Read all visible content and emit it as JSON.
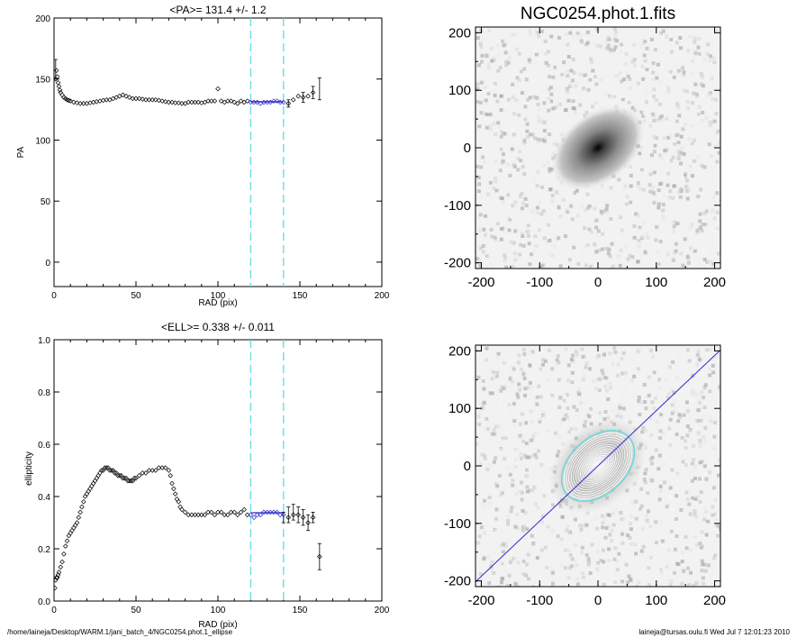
{
  "chart_data": [
    {
      "type": "scatter",
      "panel": "pa",
      "title": "<PA>= 131.4 +/-   1.2",
      "xlabel": "RAD (pix)",
      "ylabel": "PA",
      "xlim": [
        0,
        200
      ],
      "ylim": [
        -20,
        200
      ],
      "xticks": [
        0,
        50,
        100,
        150,
        200
      ],
      "yticks": [
        0,
        50,
        100,
        150,
        200
      ],
      "vlines": [
        120,
        140
      ],
      "fit": {
        "x": [
          120,
          140
        ],
        "y": 131.4
      },
      "points": [
        [
          1,
          150
        ],
        [
          1.5,
          157
        ],
        [
          2,
          152
        ],
        [
          2.5,
          147
        ],
        [
          3,
          144
        ],
        [
          3.5,
          141
        ],
        [
          4,
          139
        ],
        [
          5,
          137
        ],
        [
          6,
          135
        ],
        [
          7,
          134
        ],
        [
          8,
          133
        ],
        [
          9,
          132.5
        ],
        [
          10,
          132
        ],
        [
          12,
          131
        ],
        [
          14,
          130.5
        ],
        [
          16,
          130
        ],
        [
          18,
          130
        ],
        [
          20,
          130
        ],
        [
          22,
          130.5
        ],
        [
          24,
          131
        ],
        [
          26,
          131.5
        ],
        [
          28,
          132
        ],
        [
          30,
          132.5
        ],
        [
          32,
          133
        ],
        [
          34,
          133
        ],
        [
          36,
          134
        ],
        [
          38,
          135
        ],
        [
          40,
          136
        ],
        [
          42,
          137
        ],
        [
          44,
          136
        ],
        [
          46,
          135
        ],
        [
          48,
          134
        ],
        [
          50,
          134
        ],
        [
          52,
          134
        ],
        [
          54,
          133.5
        ],
        [
          56,
          133
        ],
        [
          58,
          133
        ],
        [
          60,
          133
        ],
        [
          62,
          133
        ],
        [
          64,
          132.5
        ],
        [
          66,
          132
        ],
        [
          68,
          131.5
        ],
        [
          70,
          131
        ],
        [
          72,
          131
        ],
        [
          74,
          130.5
        ],
        [
          76,
          130.5
        ],
        [
          78,
          130
        ],
        [
          80,
          130
        ],
        [
          82,
          131
        ],
        [
          84,
          131
        ],
        [
          86,
          131
        ],
        [
          88,
          131
        ],
        [
          90,
          130.5
        ],
        [
          92,
          131
        ],
        [
          94,
          132
        ],
        [
          96,
          132
        ],
        [
          98,
          132
        ],
        [
          100,
          142
        ],
        [
          102,
          132
        ],
        [
          104,
          131
        ],
        [
          106,
          132
        ],
        [
          108,
          132
        ],
        [
          110,
          131
        ],
        [
          112,
          130
        ],
        [
          114,
          132
        ],
        [
          116,
          131
        ],
        [
          118,
          132
        ],
        [
          120,
          131
        ],
        [
          122,
          131
        ],
        [
          124,
          131
        ],
        [
          126,
          130
        ],
        [
          128,
          131
        ],
        [
          130,
          131
        ],
        [
          132,
          131
        ],
        [
          134,
          132
        ],
        [
          136,
          132
        ],
        [
          138,
          131
        ],
        [
          140,
          131
        ],
        [
          143,
          130
        ],
        [
          146,
          133
        ],
        [
          149,
          136
        ],
        [
          152,
          135
        ],
        [
          155,
          136
        ],
        [
          158,
          139
        ]
      ],
      "errorbars": [
        [
          1,
          158,
          8
        ],
        [
          143,
          130,
          3
        ],
        [
          152,
          135,
          4
        ],
        [
          158,
          139,
          5
        ],
        [
          162,
          142,
          9
        ]
      ]
    },
    {
      "type": "scatter",
      "panel": "ell",
      "title": "<ELL>= 0.338 +/-  0.011",
      "xlabel": "RAD (pix)",
      "ylabel": "ellipticity",
      "xlim": [
        0,
        200
      ],
      "ylim": [
        0.0,
        1.0
      ],
      "xticks": [
        0,
        50,
        100,
        150,
        200
      ],
      "yticks": [
        0.0,
        0.2,
        0.4,
        0.6,
        0.8,
        1.0
      ],
      "vlines": [
        120,
        140
      ],
      "fit": {
        "x": [
          120,
          140
        ],
        "y": 0.338
      },
      "points": [
        [
          0.5,
          0.05
        ],
        [
          1,
          0.08
        ],
        [
          1.5,
          0.09
        ],
        [
          2,
          0.09
        ],
        [
          2.5,
          0.1
        ],
        [
          3,
          0.11
        ],
        [
          4,
          0.13
        ],
        [
          5,
          0.15
        ],
        [
          6,
          0.18
        ],
        [
          7,
          0.21
        ],
        [
          8,
          0.23
        ],
        [
          9,
          0.25
        ],
        [
          10,
          0.26
        ],
        [
          11,
          0.27
        ],
        [
          12,
          0.28
        ],
        [
          13,
          0.29
        ],
        [
          14,
          0.3
        ],
        [
          15,
          0.32
        ],
        [
          16,
          0.34
        ],
        [
          17,
          0.36
        ],
        [
          18,
          0.38
        ],
        [
          19,
          0.4
        ],
        [
          20,
          0.41
        ],
        [
          21,
          0.42
        ],
        [
          22,
          0.43
        ],
        [
          23,
          0.44
        ],
        [
          24,
          0.45
        ],
        [
          25,
          0.46
        ],
        [
          26,
          0.47
        ],
        [
          27,
          0.48
        ],
        [
          28,
          0.49
        ],
        [
          29,
          0.5
        ],
        [
          30,
          0.5
        ],
        [
          31,
          0.51
        ],
        [
          32,
          0.51
        ],
        [
          33,
          0.51
        ],
        [
          34,
          0.5
        ],
        [
          35,
          0.5
        ],
        [
          36,
          0.5
        ],
        [
          37,
          0.49
        ],
        [
          38,
          0.49
        ],
        [
          39,
          0.48
        ],
        [
          40,
          0.48
        ],
        [
          41,
          0.48
        ],
        [
          42,
          0.47
        ],
        [
          43,
          0.47
        ],
        [
          44,
          0.47
        ],
        [
          45,
          0.46
        ],
        [
          46,
          0.46
        ],
        [
          47,
          0.46
        ],
        [
          48,
          0.46
        ],
        [
          49,
          0.47
        ],
        [
          50,
          0.47
        ],
        [
          52,
          0.48
        ],
        [
          54,
          0.49
        ],
        [
          56,
          0.49
        ],
        [
          58,
          0.5
        ],
        [
          60,
          0.5
        ],
        [
          62,
          0.5
        ],
        [
          64,
          0.51
        ],
        [
          66,
          0.51
        ],
        [
          68,
          0.51
        ],
        [
          70,
          0.5
        ],
        [
          71,
          0.48
        ],
        [
          72,
          0.45
        ],
        [
          73,
          0.43
        ],
        [
          74,
          0.41
        ],
        [
          75,
          0.39
        ],
        [
          76,
          0.38
        ],
        [
          77,
          0.36
        ],
        [
          78,
          0.35
        ],
        [
          80,
          0.34
        ],
        [
          82,
          0.33
        ],
        [
          84,
          0.33
        ],
        [
          86,
          0.33
        ],
        [
          88,
          0.33
        ],
        [
          90,
          0.33
        ],
        [
          92,
          0.33
        ],
        [
          94,
          0.34
        ],
        [
          96,
          0.34
        ],
        [
          98,
          0.33
        ],
        [
          100,
          0.34
        ],
        [
          102,
          0.34
        ],
        [
          104,
          0.33
        ],
        [
          106,
          0.33
        ],
        [
          108,
          0.34
        ],
        [
          110,
          0.34
        ],
        [
          112,
          0.33
        ],
        [
          114,
          0.34
        ],
        [
          116,
          0.35
        ],
        [
          118,
          0.33
        ],
        [
          120,
          0.33
        ],
        [
          122,
          0.32
        ],
        [
          124,
          0.33
        ],
        [
          126,
          0.33
        ],
        [
          128,
          0.34
        ],
        [
          130,
          0.34
        ],
        [
          132,
          0.34
        ],
        [
          134,
          0.34
        ],
        [
          136,
          0.34
        ],
        [
          138,
          0.33
        ],
        [
          140,
          0.33
        ],
        [
          143,
          0.32
        ],
        [
          146,
          0.33
        ],
        [
          149,
          0.33
        ],
        [
          152,
          0.32
        ],
        [
          155,
          0.3
        ],
        [
          158,
          0.32
        ],
        [
          162,
          0.17
        ]
      ],
      "errorbars": [
        [
          140,
          0.32,
          0.02
        ],
        [
          143,
          0.33,
          0.03
        ],
        [
          146,
          0.34,
          0.03
        ],
        [
          149,
          0.33,
          0.03
        ],
        [
          152,
          0.32,
          0.03
        ],
        [
          155,
          0.3,
          0.03
        ],
        [
          158,
          0.32,
          0.02
        ],
        [
          162,
          0.17,
          0.05
        ]
      ]
    },
    {
      "type": "heatmap",
      "panel": "image",
      "title": "NGC0254.phot.1.fits",
      "xlim": [
        -210,
        210
      ],
      "ylim": [
        -210,
        210
      ],
      "xticks": [
        -200,
        -100,
        0,
        100,
        200
      ],
      "yticks": [
        -200,
        -100,
        0,
        100,
        200
      ],
      "galaxy": {
        "pa_deg": 131.4,
        "ell": 0.338,
        "radius": 90
      }
    },
    {
      "type": "heatmap",
      "panel": "isophotes",
      "xlim": [
        -210,
        210
      ],
      "ylim": [
        -210,
        210
      ],
      "xticks": [
        -200,
        -100,
        0,
        100,
        200
      ],
      "yticks": [
        -200,
        -100,
        0,
        100,
        200
      ],
      "galaxy": {
        "pa_deg": 131.4,
        "ell": 0.338,
        "radius": 110
      },
      "majoraxis_slope": 0.96
    }
  ],
  "footer": {
    "path": "/home/laineja/Desktop/WARM.1/jani_batch_4/NGC0254.phot.1_ellipse",
    "stamp": "laineja@tursas.oulu.fi  Wed Jul  7 12:01:23 2010"
  },
  "colors": {
    "axis": "#000000",
    "vline": "#66e0e0",
    "fit": "#2a2ac8",
    "ellipse_outer": "#66d8d8",
    "majoraxis": "#2a2ad0"
  }
}
